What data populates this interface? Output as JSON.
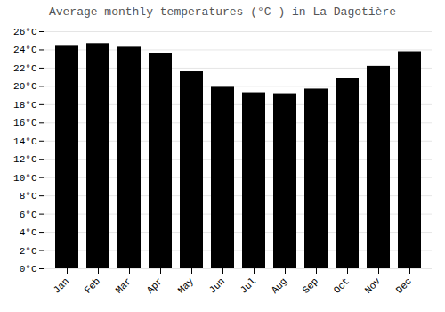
{
  "chart_data": {
    "type": "bar",
    "title": "Average monthly temperatures (°C ) in La Dagotière",
    "categories": [
      "Jan",
      "Feb",
      "Mar",
      "Apr",
      "May",
      "Jun",
      "Jul",
      "Aug",
      "Sep",
      "Oct",
      "Nov",
      "Dec"
    ],
    "values": [
      24.4,
      24.7,
      24.3,
      23.6,
      21.6,
      19.9,
      19.3,
      19.2,
      19.7,
      20.9,
      22.2,
      23.8
    ],
    "ylim": [
      0,
      26
    ],
    "yticks": [
      {
        "value": 0,
        "label": "0°C"
      },
      {
        "value": 2,
        "label": "2°C"
      },
      {
        "value": 4,
        "label": "4°C"
      },
      {
        "value": 6,
        "label": "6°C"
      },
      {
        "value": 8,
        "label": "8°C"
      },
      {
        "value": 10,
        "label": "10°C"
      },
      {
        "value": 12,
        "label": "12°C"
      },
      {
        "value": 14,
        "label": "14°C"
      },
      {
        "value": 16,
        "label": "16°C"
      },
      {
        "value": 18,
        "label": "18°C"
      },
      {
        "value": 20,
        "label": "20°C"
      },
      {
        "value": 22,
        "label": "22°C"
      },
      {
        "value": 24,
        "label": "24°C"
      },
      {
        "value": 26,
        "label": "26°C"
      }
    ],
    "grid": true
  }
}
